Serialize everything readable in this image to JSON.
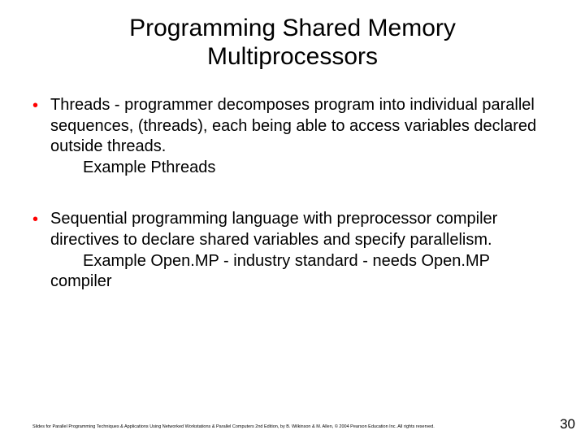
{
  "title": "Programming Shared Memory Multiprocessors",
  "bullets": [
    {
      "text": "Threads - programmer decomposes program into individual parallel sequences, (threads), each being able to access variables declared outside threads.",
      "example": "Example Pthreads"
    },
    {
      "text": "Sequential programming language with preprocessor compiler directives to declare shared variables and specify parallelism.",
      "example": "Example Open.MP - industry standard - needs Open.MP",
      "continuation": "compiler"
    }
  ],
  "footer": "Slides for Parallel Programming Techniques & Applications Using Networked Workstations & Parallel Computers 2nd Edition, by B. Wilkinson & M. Allen, © 2004 Pearson Education Inc. All rights reserved.",
  "page_number": "30",
  "colors": {
    "bullet_marker": "#ff0000",
    "text": "#000000",
    "background": "#ffffff"
  },
  "typography": {
    "title_fontsize": 30,
    "body_fontsize": 20,
    "footer_fontsize": 5.5,
    "pagenum_fontsize": 17,
    "font_family": "Arial"
  }
}
